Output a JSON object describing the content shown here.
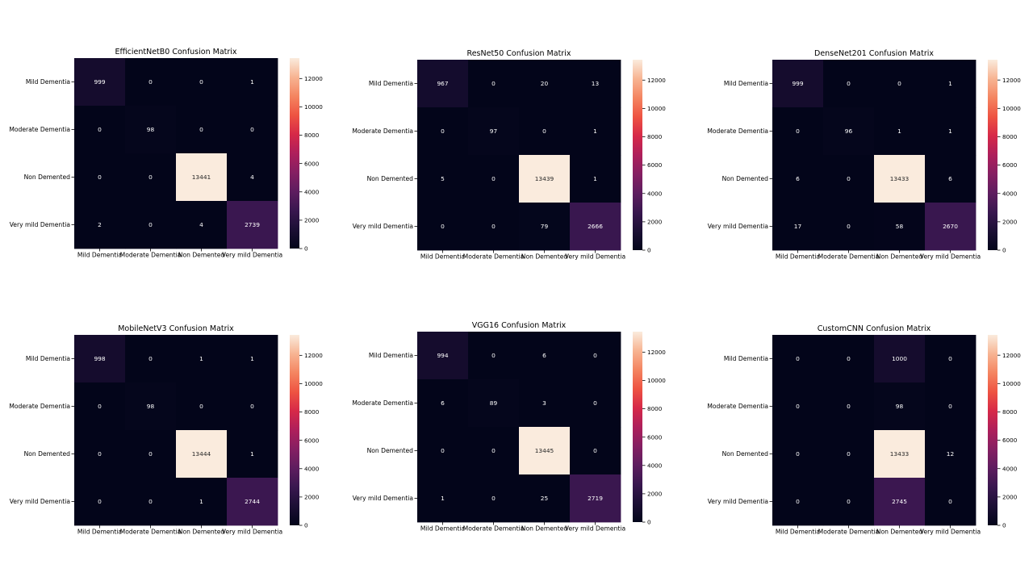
{
  "chart_data": [
    {
      "type": "heatmap",
      "title": "EfficientNetB0 Confusion Matrix",
      "xlabel": "",
      "ylabel": "",
      "x_categories": [
        "Mild Dementia",
        "Moderate Dementia",
        "Non Demented",
        "Very mild Dementia"
      ],
      "y_categories": [
        "Mild Dementia",
        "Moderate Dementia",
        "Non Demented",
        "Very mild Dementia"
      ],
      "values": [
        [
          999,
          0,
          0,
          1
        ],
        [
          0,
          98,
          0,
          0
        ],
        [
          0,
          0,
          13441,
          4
        ],
        [
          2,
          0,
          4,
          2739
        ]
      ],
      "colorbar": {
        "range": [
          0,
          13441
        ],
        "ticks": [
          0,
          2000,
          4000,
          6000,
          8000,
          10000,
          12000
        ]
      }
    },
    {
      "type": "heatmap",
      "title": "ResNet50 Confusion Matrix",
      "xlabel": "",
      "ylabel": "",
      "x_categories": [
        "Mild Dementia",
        "Moderate Dementia",
        "Non Demented",
        "Very mild Dementia"
      ],
      "y_categories": [
        "Mild Dementia",
        "Moderate Dementia",
        "Non Demented",
        "Very mild Dementia"
      ],
      "values": [
        [
          967,
          0,
          20,
          13
        ],
        [
          0,
          97,
          0,
          1
        ],
        [
          5,
          0,
          13439,
          1
        ],
        [
          0,
          0,
          79,
          2666
        ]
      ],
      "colorbar": {
        "range": [
          0,
          13439
        ],
        "ticks": [
          0,
          2000,
          4000,
          6000,
          8000,
          10000,
          12000
        ]
      }
    },
    {
      "type": "heatmap",
      "title": "DenseNet201 Confusion Matrix",
      "xlabel": "",
      "ylabel": "",
      "x_categories": [
        "Mild Dementia",
        "Moderate Dementia",
        "Non Demented",
        "Very mild Dementia"
      ],
      "y_categories": [
        "Mild Dementia",
        "Moderate Dementia",
        "Non Demented",
        "Very mild Dementia"
      ],
      "values": [
        [
          999,
          0,
          0,
          1
        ],
        [
          0,
          96,
          1,
          1
        ],
        [
          6,
          0,
          13433,
          6
        ],
        [
          17,
          0,
          58,
          2670
        ]
      ],
      "colorbar": {
        "range": [
          0,
          13433
        ],
        "ticks": [
          0,
          2000,
          4000,
          6000,
          8000,
          10000,
          12000
        ]
      }
    },
    {
      "type": "heatmap",
      "title": "MobileNetV3 Confusion Matrix",
      "xlabel": "",
      "ylabel": "",
      "x_categories": [
        "Mild Dementia",
        "Moderate Dementia",
        "Non Demented",
        "Very mild Dementia"
      ],
      "y_categories": [
        "Mild Dementia",
        "Moderate Dementia",
        "Non Demented",
        "Very mild Dementia"
      ],
      "values": [
        [
          998,
          0,
          1,
          1
        ],
        [
          0,
          98,
          0,
          0
        ],
        [
          0,
          0,
          13444,
          1
        ],
        [
          0,
          0,
          1,
          2744
        ]
      ],
      "colorbar": {
        "range": [
          0,
          13444
        ],
        "ticks": [
          0,
          2000,
          4000,
          6000,
          8000,
          10000,
          12000
        ]
      }
    },
    {
      "type": "heatmap",
      "title": "VGG16 Confusion Matrix",
      "xlabel": "",
      "ylabel": "",
      "x_categories": [
        "Mild Dementia",
        "Moderate Dementia",
        "Non Demented",
        "Very mild Dementia"
      ],
      "y_categories": [
        "Mild Dementia",
        "Moderate Dementia",
        "Non Demented",
        "Very mild Dementia"
      ],
      "values": [
        [
          994,
          0,
          6,
          0
        ],
        [
          6,
          89,
          3,
          0
        ],
        [
          0,
          0,
          13445,
          0
        ],
        [
          1,
          0,
          25,
          2719
        ]
      ],
      "colorbar": {
        "range": [
          0,
          13445
        ],
        "ticks": [
          0,
          2000,
          4000,
          6000,
          8000,
          10000,
          12000
        ]
      }
    },
    {
      "type": "heatmap",
      "title": "CustomCNN Confusion Matrix",
      "xlabel": "",
      "ylabel": "",
      "x_categories": [
        "Mild Dementia",
        "Moderate Dementia",
        "Non Demented",
        "Very mild Dementia"
      ],
      "y_categories": [
        "Mild Dementia",
        "Moderate Dementia",
        "Non Demented",
        "Very mild Dementia"
      ],
      "values": [
        [
          0,
          0,
          1000,
          0
        ],
        [
          0,
          0,
          98,
          0
        ],
        [
          0,
          0,
          13433,
          12
        ],
        [
          0,
          0,
          2745,
          0
        ]
      ],
      "colorbar": {
        "range": [
          0,
          13433
        ],
        "ticks": [
          0,
          2000,
          4000,
          6000,
          8000,
          10000,
          12000
        ]
      }
    }
  ]
}
